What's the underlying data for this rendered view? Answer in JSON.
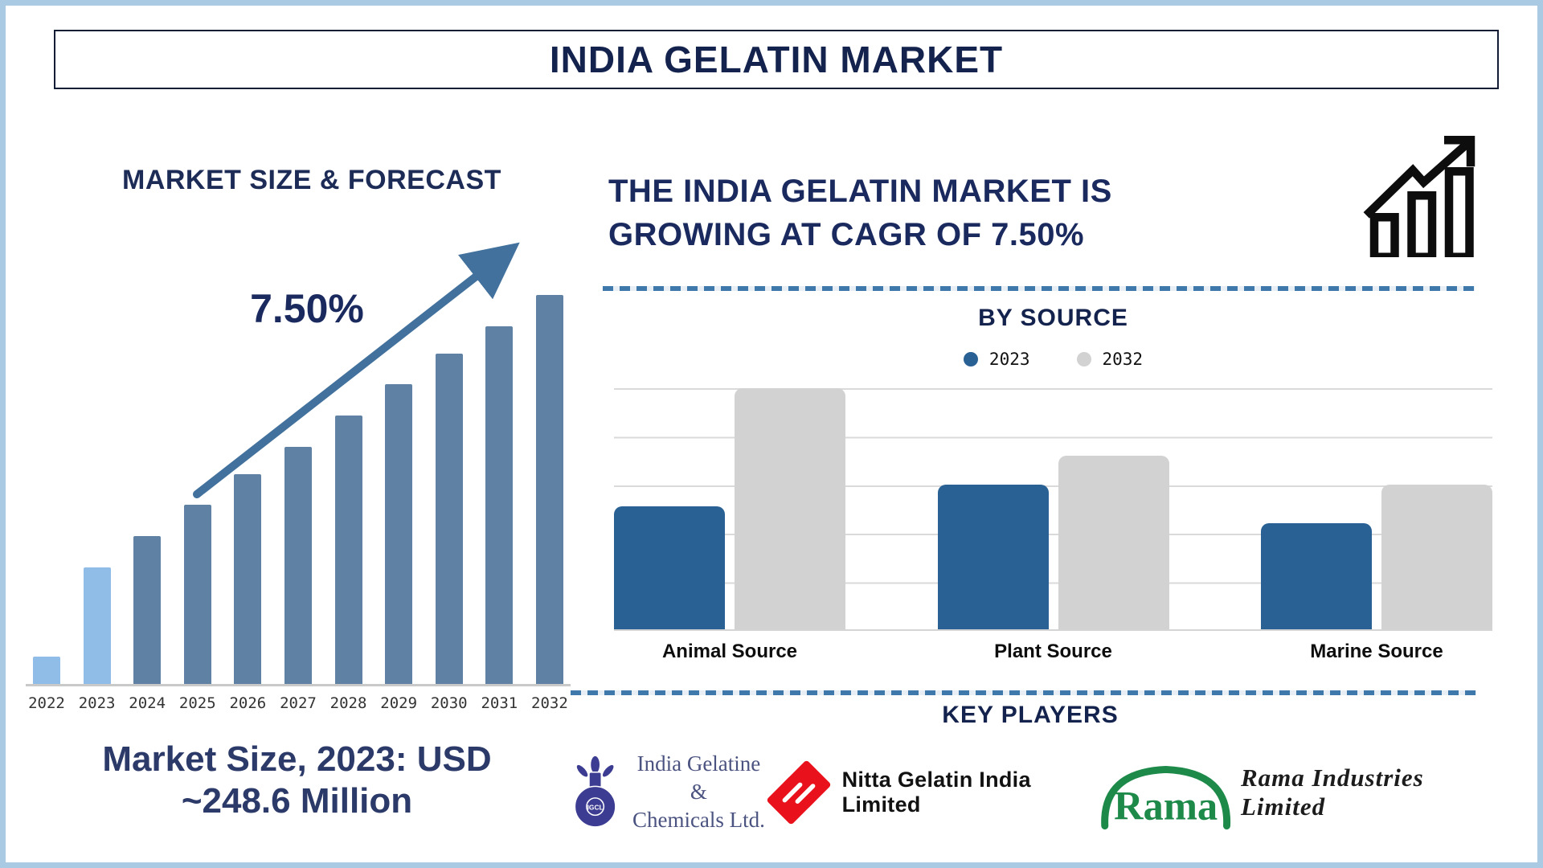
{
  "page": {
    "title": "INDIA GELATIN MARKET"
  },
  "left_panel": {
    "heading": "MARKET SIZE & FORECAST",
    "cagr_label": "7.50%",
    "stat_line1": "Market Size, 2023: USD",
    "stat_line2": "~248.6 Million"
  },
  "right_panel": {
    "heading_line1": "THE INDIA GELATIN MARKET IS",
    "heading_line2": "GROWING AT CAGR OF 7.50%",
    "by_source_title": "BY SOURCE",
    "key_players_title": "KEY PLAYERS",
    "players": [
      {
        "emblem_text": "IGCL",
        "name_line1": "India Gelatine &",
        "name_line2": "Chemicals Ltd."
      },
      {
        "name": "Nitta Gelatin India Limited"
      },
      {
        "logo_word": "Rama",
        "name": "Rama Industries Limited"
      }
    ]
  },
  "colors": {
    "navy_text": "#1a2a5e",
    "outer_border": "#aac9e3",
    "left_bar_highlight": "#90bce8",
    "left_bar_normal": "#5f82a4",
    "trend_arrow": "#41719c",
    "source_bar_2023": "#2a6194",
    "source_bar_2032": "#d2d2d2",
    "divider_blue": "#3f78aa",
    "gridline": "#dadada",
    "igcl_blue": "#3c3c92",
    "nitta_red": "#e8111c",
    "rama_green": "#1e8a4a"
  },
  "chart_data": [
    {
      "type": "bar",
      "title": "MARKET SIZE & FORECAST",
      "x": [
        "2022",
        "2023",
        "2024",
        "2025",
        "2026",
        "2027",
        "2028",
        "2029",
        "2030",
        "2031",
        "2032"
      ],
      "values": [
        7,
        30,
        38,
        46,
        54,
        61,
        69,
        77,
        85,
        92,
        100
      ],
      "units": "relative bar height, % of 2032 bar (no numeric axis shown)",
      "ylim": [
        0,
        100
      ],
      "grid": false,
      "yaxis_shown": false,
      "highlight_categories": [
        "2022",
        "2023"
      ],
      "annotations": [
        "7.50% CAGR trend arrow",
        "Market Size, 2023: USD ~248.6 Million"
      ]
    },
    {
      "type": "bar",
      "title": "BY SOURCE",
      "categories": [
        "Animal Source",
        "Plant Source",
        "Marine Source"
      ],
      "series": [
        {
          "name": "2023",
          "color": "#2a6194",
          "values": [
            51,
            60,
            44
          ]
        },
        {
          "name": "2032",
          "color": "#d2d2d2",
          "values": [
            100,
            72,
            60
          ]
        }
      ],
      "units": "relative bar height, % of tallest bar (no numeric axis shown)",
      "legend_position": "top",
      "grid": true,
      "gridline_count": 6,
      "yaxis_shown": false
    }
  ]
}
